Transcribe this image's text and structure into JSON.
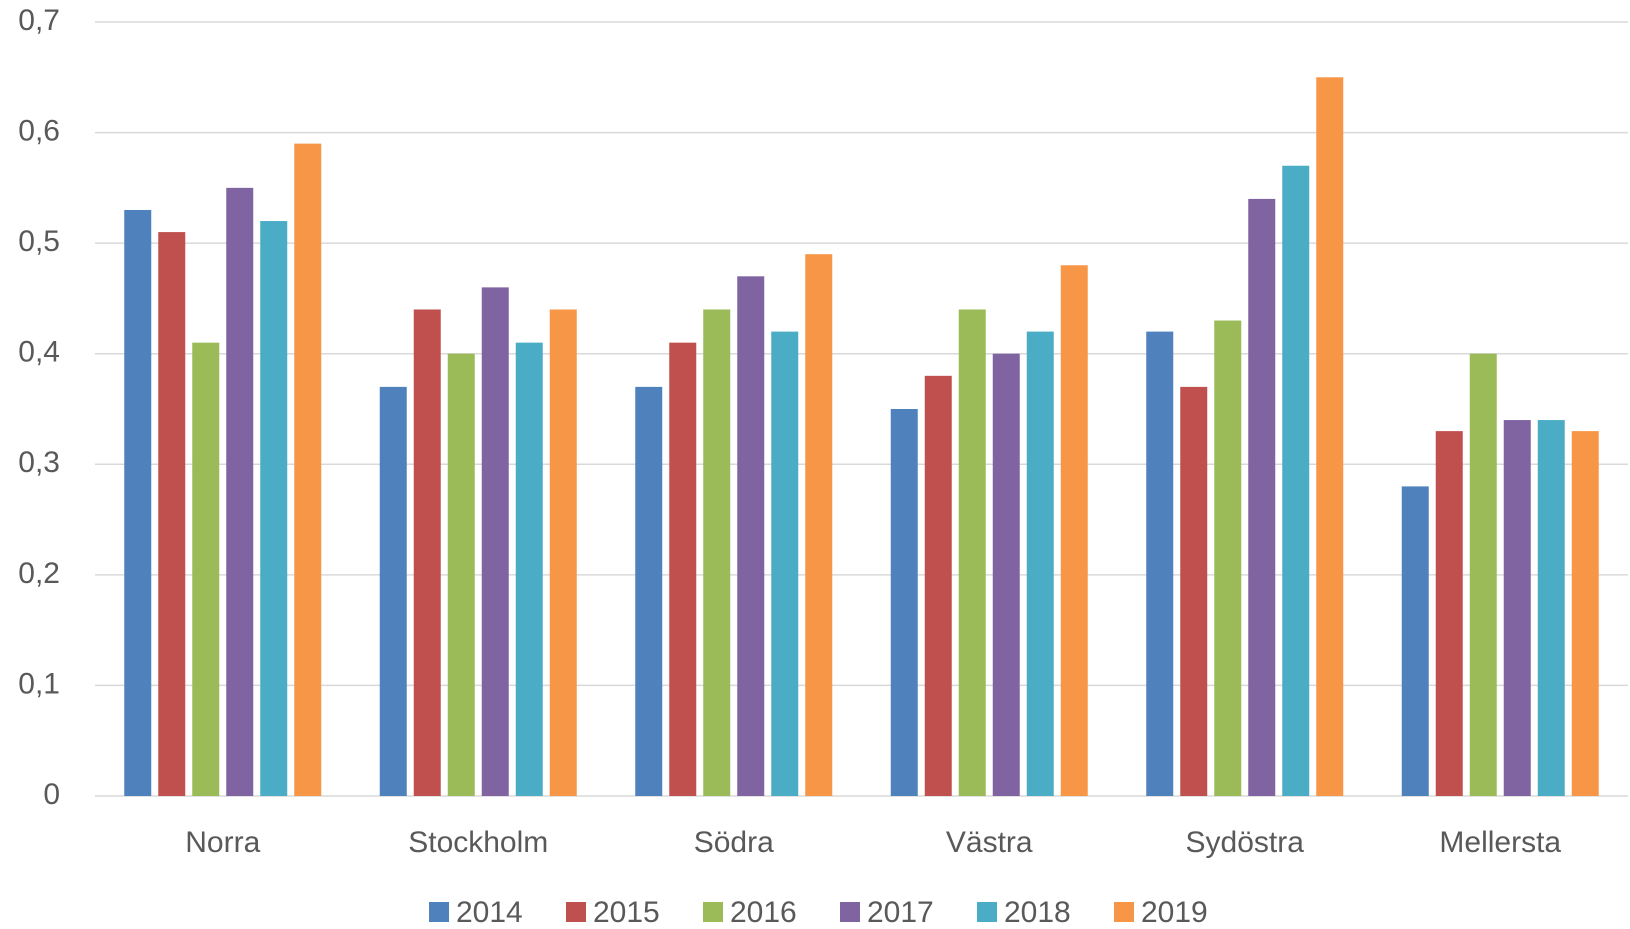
{
  "chart_data": {
    "type": "bar",
    "categories": [
      "Norra",
      "Stockholm",
      "Södra",
      "Västra",
      "Sydöstra",
      "Mellersta"
    ],
    "series": [
      {
        "name": "2014",
        "color": "#4f81bd",
        "values": [
          0.53,
          0.37,
          0.37,
          0.35,
          0.42,
          0.28
        ]
      },
      {
        "name": "2015",
        "color": "#c0504d",
        "values": [
          0.51,
          0.44,
          0.41,
          0.38,
          0.37,
          0.33
        ]
      },
      {
        "name": "2016",
        "color": "#9bbb59",
        "values": [
          0.41,
          0.4,
          0.44,
          0.44,
          0.43,
          0.4
        ]
      },
      {
        "name": "2017",
        "color": "#8064a2",
        "values": [
          0.55,
          0.46,
          0.47,
          0.4,
          0.54,
          0.34
        ]
      },
      {
        "name": "2018",
        "color": "#4bacc6",
        "values": [
          0.52,
          0.41,
          0.42,
          0.42,
          0.57,
          0.34
        ]
      },
      {
        "name": "2019",
        "color": "#f79646",
        "values": [
          0.59,
          0.44,
          0.49,
          0.48,
          0.65,
          0.33
        ]
      }
    ],
    "ylim": [
      0,
      0.7
    ],
    "yticks": [
      0,
      {
        "value": 0.1,
        "label": "0,1"
      },
      {
        "value": 0.2,
        "label": "0,2"
      },
      {
        "value": 0.3,
        "label": "0,3"
      },
      {
        "value": 0.4,
        "label": "0,4"
      },
      {
        "value": 0.5,
        "label": "0,5"
      },
      {
        "value": 0.6,
        "label": "0,6"
      },
      {
        "value": 0.7,
        "label": "0,7"
      }
    ],
    "grid": true,
    "legend": "bottom"
  }
}
